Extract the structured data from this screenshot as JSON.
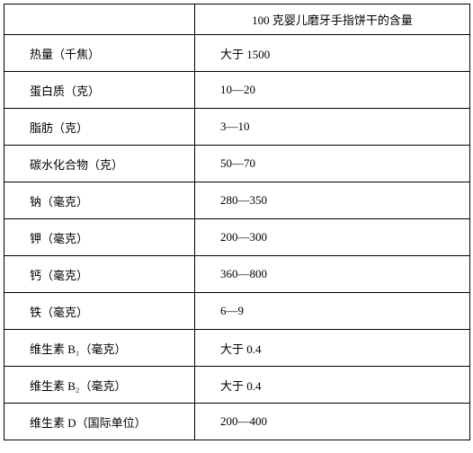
{
  "table": {
    "header_col2": "100 克婴儿磨牙手指饼干的含量",
    "rows": [
      {
        "label": "热量（千焦）",
        "value": "大于 1500"
      },
      {
        "label": "蛋白质（克）",
        "value": "10—20"
      },
      {
        "label": "脂肪（克）",
        "value": "3—10"
      },
      {
        "label": "碳水化合物（克）",
        "value": "50—70"
      },
      {
        "label": "钠（毫克）",
        "value": "280—350"
      },
      {
        "label": "钾（毫克）",
        "value": "200—300"
      },
      {
        "label": "钙（毫克）",
        "value": "360—800"
      },
      {
        "label": "铁（毫克）",
        "value": "6—9"
      },
      {
        "label": "维生素 B₁（毫克）",
        "value": "大于 0.4"
      },
      {
        "label": "维生素 B₂（毫克）",
        "value": "大于 0.4"
      },
      {
        "label": "维生素 D（国际单位）",
        "value": "200—400"
      }
    ]
  }
}
